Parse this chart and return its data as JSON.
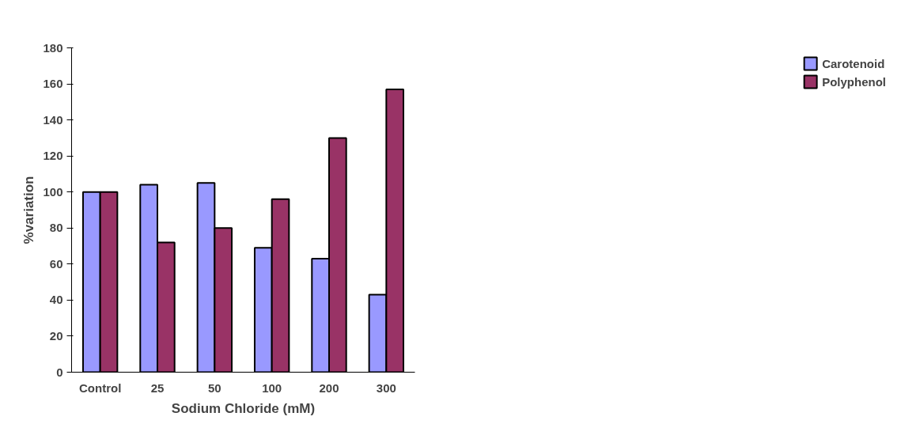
{
  "chart_data": {
    "type": "bar",
    "xlabel": "Sodium Chloride (mM)",
    "ylabel": "%variation",
    "categories": [
      "Control",
      "25",
      "50",
      "100",
      "200",
      "300"
    ],
    "series": [
      {
        "name": "Carotenoid",
        "color": "#9999ff",
        "values": [
          100,
          104,
          105,
          69,
          63,
          43
        ]
      },
      {
        "name": "Polyphenol",
        "color": "#993366",
        "values": [
          100,
          72,
          80,
          96,
          130,
          157
        ]
      }
    ],
    "ylim": [
      0,
      180
    ],
    "yticks": [
      0,
      20,
      40,
      60,
      80,
      100,
      120,
      140,
      160,
      180
    ],
    "grid": false,
    "legend": "top right"
  }
}
